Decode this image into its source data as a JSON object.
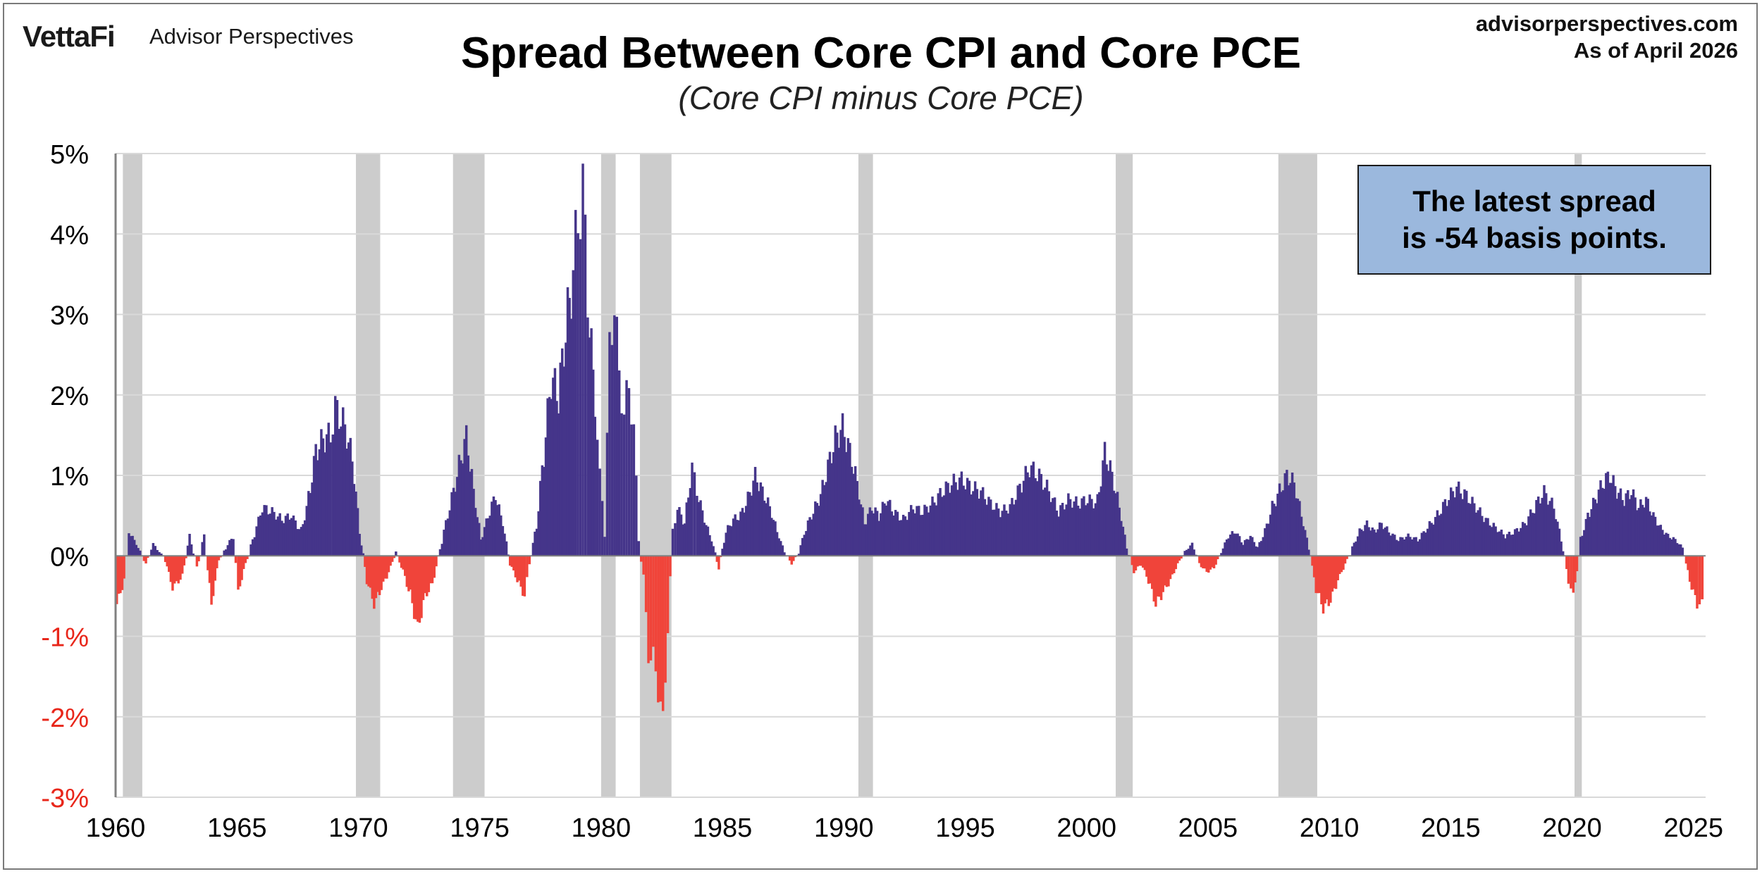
{
  "header": {
    "logo_text": "VettaFi",
    "brand_name": "Advisor Perspectives",
    "site": "advisorperspectives.com",
    "as_of": "As of April 2026"
  },
  "callout": {
    "line1": "The latest spread",
    "line2": "is -54 basis points."
  },
  "colors": {
    "positive": "#45358a",
    "negative": "#f0443a",
    "recession": "#cccccc",
    "grid": "#d9d9d9",
    "callout_bg": "#9bb8dd"
  },
  "chart_data": {
    "type": "bar",
    "title": "Spread Between Core CPI and Core PCE",
    "subtitle": "(Core CPI minus Core PCE)",
    "xlabel": "",
    "ylabel": "",
    "xlim": [
      1960,
      2025.5
    ],
    "ylim": [
      -3,
      5
    ],
    "y_ticks": [
      {
        "value": 5,
        "label": "5%"
      },
      {
        "value": 4,
        "label": "4%"
      },
      {
        "value": 3,
        "label": "3%"
      },
      {
        "value": 2,
        "label": "2%"
      },
      {
        "value": 1,
        "label": "1%"
      },
      {
        "value": 0,
        "label": "0%"
      },
      {
        "value": -1,
        "label": "-1%"
      },
      {
        "value": -2,
        "label": "-2%"
      },
      {
        "value": -3,
        "label": "-3%"
      }
    ],
    "x_ticks": [
      1960,
      1965,
      1970,
      1975,
      1980,
      1985,
      1990,
      1995,
      2000,
      2005,
      2010,
      2015,
      2020,
      2025
    ],
    "grid": true,
    "legend": "none",
    "recessions": [
      [
        1960.3,
        1961.1
      ],
      [
        1969.9,
        1970.9
      ],
      [
        1973.9,
        1975.2
      ],
      [
        1980.0,
        1980.6
      ],
      [
        1981.6,
        1982.9
      ],
      [
        1990.6,
        1991.2
      ],
      [
        2001.2,
        2001.9
      ],
      [
        2007.9,
        2009.5
      ],
      [
        2020.1,
        2020.4
      ]
    ],
    "series": [
      {
        "name": "Core CPI minus Core PCE",
        "points": [
          [
            1960.0,
            -0.6
          ],
          [
            1960.3,
            -0.3
          ],
          [
            1960.5,
            0.3
          ],
          [
            1960.8,
            0.15
          ],
          [
            1961.2,
            -0.1
          ],
          [
            1961.5,
            0.15
          ],
          [
            1962.0,
            -0.05
          ],
          [
            1962.3,
            -0.4
          ],
          [
            1962.7,
            -0.25
          ],
          [
            1963.0,
            0.25
          ],
          [
            1963.3,
            -0.15
          ],
          [
            1963.6,
            0.25
          ],
          [
            1963.9,
            -0.6
          ],
          [
            1964.2,
            -0.05
          ],
          [
            1964.5,
            0.1
          ],
          [
            1964.8,
            0.25
          ],
          [
            1965.0,
            -0.45
          ],
          [
            1965.3,
            -0.1
          ],
          [
            1965.6,
            0.2
          ],
          [
            1966.0,
            0.6
          ],
          [
            1966.4,
            0.55
          ],
          [
            1966.8,
            0.45
          ],
          [
            1967.2,
            0.5
          ],
          [
            1967.6,
            0.3
          ],
          [
            1967.9,
            0.7
          ],
          [
            1968.2,
            1.3
          ],
          [
            1968.5,
            1.45
          ],
          [
            1968.8,
            1.5
          ],
          [
            1969.0,
            1.85
          ],
          [
            1969.4,
            1.6
          ],
          [
            1969.7,
            1.2
          ],
          [
            1970.0,
            0.3
          ],
          [
            1970.3,
            -0.3
          ],
          [
            1970.6,
            -0.6
          ],
          [
            1970.9,
            -0.4
          ],
          [
            1971.2,
            -0.2
          ],
          [
            1971.5,
            0.05
          ],
          [
            1971.8,
            -0.2
          ],
          [
            1972.1,
            -0.5
          ],
          [
            1972.4,
            -0.9
          ],
          [
            1972.7,
            -0.5
          ],
          [
            1973.0,
            -0.35
          ],
          [
            1973.4,
            0.2
          ],
          [
            1973.8,
            0.7
          ],
          [
            1974.1,
            1.1
          ],
          [
            1974.4,
            1.5
          ],
          [
            1974.7,
            0.8
          ],
          [
            1975.0,
            0.2
          ],
          [
            1975.3,
            0.5
          ],
          [
            1975.6,
            0.75
          ],
          [
            1975.9,
            0.4
          ],
          [
            1976.2,
            -0.1
          ],
          [
            1976.5,
            -0.3
          ],
          [
            1976.8,
            -0.5
          ],
          [
            1977.0,
            -0.1
          ],
          [
            1977.3,
            0.4
          ],
          [
            1977.6,
            1.3
          ],
          [
            1977.9,
            2.2
          ],
          [
            1978.2,
            2.0
          ],
          [
            1978.5,
            2.8
          ],
          [
            1978.8,
            3.5
          ],
          [
            1979.0,
            4.2
          ],
          [
            1979.2,
            4.6
          ],
          [
            1979.4,
            3.2
          ],
          [
            1979.7,
            1.9
          ],
          [
            1979.9,
            1.0
          ],
          [
            1980.1,
            0.4
          ],
          [
            1980.3,
            2.5
          ],
          [
            1980.5,
            3.2
          ],
          [
            1980.7,
            2.2
          ],
          [
            1980.9,
            1.8
          ],
          [
            1981.1,
            2.1
          ],
          [
            1981.3,
            1.6
          ],
          [
            1981.5,
            0.2
          ],
          [
            1981.7,
            -0.3
          ],
          [
            1981.9,
            -1.2
          ],
          [
            1982.1,
            -1.3
          ],
          [
            1982.3,
            -1.6
          ],
          [
            1982.5,
            -2.1
          ],
          [
            1982.7,
            -0.9
          ],
          [
            1982.9,
            0.3
          ],
          [
            1983.1,
            0.6
          ],
          [
            1983.4,
            0.4
          ],
          [
            1983.7,
            1.1
          ],
          [
            1983.9,
            0.8
          ],
          [
            1984.2,
            0.45
          ],
          [
            1984.5,
            0.2
          ],
          [
            1984.8,
            -0.15
          ],
          [
            1985.1,
            0.3
          ],
          [
            1985.4,
            0.45
          ],
          [
            1985.7,
            0.5
          ],
          [
            1986.0,
            0.7
          ],
          [
            1986.3,
            1.0
          ],
          [
            1986.6,
            0.8
          ],
          [
            1986.9,
            0.6
          ],
          [
            1987.2,
            0.3
          ],
          [
            1987.5,
            0.05
          ],
          [
            1987.8,
            -0.1
          ],
          [
            1988.1,
            0.05
          ],
          [
            1988.4,
            0.35
          ],
          [
            1988.7,
            0.55
          ],
          [
            1989.0,
            0.75
          ],
          [
            1989.3,
            1.1
          ],
          [
            1989.6,
            1.45
          ],
          [
            1989.9,
            1.6
          ],
          [
            1990.2,
            1.3
          ],
          [
            1990.5,
            0.9
          ],
          [
            1990.8,
            0.4
          ],
          [
            1991.1,
            0.6
          ],
          [
            1991.4,
            0.5
          ],
          [
            1991.7,
            0.7
          ],
          [
            1992.0,
            0.55
          ],
          [
            1992.4,
            0.45
          ],
          [
            1992.8,
            0.6
          ],
          [
            1993.2,
            0.55
          ],
          [
            1993.6,
            0.65
          ],
          [
            1994.0,
            0.8
          ],
          [
            1994.4,
            0.9
          ],
          [
            1994.8,
            0.95
          ],
          [
            1995.2,
            0.85
          ],
          [
            1995.6,
            0.8
          ],
          [
            1996.0,
            0.65
          ],
          [
            1996.4,
            0.55
          ],
          [
            1996.8,
            0.6
          ],
          [
            1997.2,
            0.85
          ],
          [
            1997.6,
            1.1
          ],
          [
            1998.0,
            1.0
          ],
          [
            1998.4,
            0.8
          ],
          [
            1998.8,
            0.55
          ],
          [
            1999.2,
            0.7
          ],
          [
            1999.6,
            0.65
          ],
          [
            2000.0,
            0.7
          ],
          [
            2000.4,
            0.65
          ],
          [
            2000.7,
            1.3
          ],
          [
            2001.0,
            1.0
          ],
          [
            2001.3,
            0.6
          ],
          [
            2001.6,
            0.1
          ],
          [
            2001.9,
            -0.2
          ],
          [
            2002.2,
            -0.1
          ],
          [
            2002.5,
            -0.3
          ],
          [
            2002.8,
            -0.6
          ],
          [
            2003.1,
            -0.45
          ],
          [
            2003.4,
            -0.3
          ],
          [
            2003.7,
            -0.1
          ],
          [
            2004.0,
            0.05
          ],
          [
            2004.3,
            0.15
          ],
          [
            2004.6,
            -0.1
          ],
          [
            2004.9,
            -0.2
          ],
          [
            2005.2,
            -0.15
          ],
          [
            2005.5,
            0.05
          ],
          [
            2005.8,
            0.25
          ],
          [
            2006.1,
            0.3
          ],
          [
            2006.4,
            0.15
          ],
          [
            2006.7,
            0.25
          ],
          [
            2007.0,
            0.1
          ],
          [
            2007.3,
            0.3
          ],
          [
            2007.6,
            0.6
          ],
          [
            2007.9,
            0.8
          ],
          [
            2008.2,
            1.0
          ],
          [
            2008.5,
            0.9
          ],
          [
            2008.8,
            0.5
          ],
          [
            2009.1,
            0.1
          ],
          [
            2009.4,
            -0.4
          ],
          [
            2009.7,
            -0.65
          ],
          [
            2010.0,
            -0.55
          ],
          [
            2010.3,
            -0.3
          ],
          [
            2010.6,
            -0.1
          ],
          [
            2010.9,
            0.1
          ],
          [
            2011.2,
            0.3
          ],
          [
            2011.5,
            0.4
          ],
          [
            2011.8,
            0.3
          ],
          [
            2012.1,
            0.4
          ],
          [
            2012.4,
            0.3
          ],
          [
            2012.8,
            0.2
          ],
          [
            2013.2,
            0.25
          ],
          [
            2013.6,
            0.2
          ],
          [
            2014.0,
            0.35
          ],
          [
            2014.4,
            0.5
          ],
          [
            2014.8,
            0.7
          ],
          [
            2015.2,
            0.85
          ],
          [
            2015.6,
            0.75
          ],
          [
            2016.0,
            0.6
          ],
          [
            2016.4,
            0.45
          ],
          [
            2016.8,
            0.35
          ],
          [
            2017.2,
            0.25
          ],
          [
            2017.6,
            0.3
          ],
          [
            2018.0,
            0.4
          ],
          [
            2018.4,
            0.6
          ],
          [
            2018.8,
            0.8
          ],
          [
            2019.2,
            0.6
          ],
          [
            2019.5,
            0.2
          ],
          [
            2019.8,
            -0.3
          ],
          [
            2020.0,
            -0.5
          ],
          [
            2020.3,
            0.2
          ],
          [
            2020.6,
            0.5
          ],
          [
            2020.9,
            0.7
          ],
          [
            2021.2,
            0.9
          ],
          [
            2021.5,
            1.0
          ],
          [
            2021.8,
            0.8
          ],
          [
            2022.1,
            0.7
          ],
          [
            2022.4,
            0.8
          ],
          [
            2022.7,
            0.6
          ],
          [
            2023.0,
            0.7
          ],
          [
            2023.3,
            0.5
          ],
          [
            2023.6,
            0.35
          ],
          [
            2023.9,
            0.25
          ],
          [
            2024.2,
            0.2
          ],
          [
            2024.5,
            0.1
          ],
          [
            2024.8,
            -0.3
          ],
          [
            2025.1,
            -0.6
          ],
          [
            2025.3,
            -0.54
          ]
        ]
      }
    ]
  }
}
